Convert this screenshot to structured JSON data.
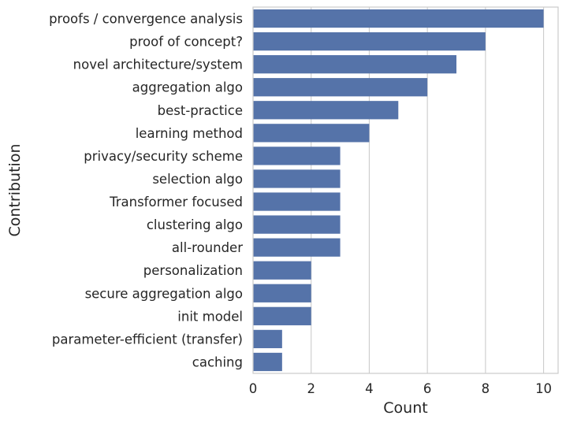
{
  "chart_data": {
    "type": "bar",
    "orientation": "horizontal",
    "categories": [
      "proofs / convergence analysis",
      "proof of concept?",
      "novel architecture/system",
      "aggregation algo",
      "best-practice",
      "learning method",
      "privacy/security scheme",
      "selection algo",
      "Transformer focused",
      "clustering algo",
      "all-rounder",
      "personalization",
      "secure aggregation algo",
      "init model",
      "parameter-efficient (transfer)",
      "caching"
    ],
    "values": [
      10,
      8,
      7,
      6,
      5,
      4,
      3,
      3,
      3,
      3,
      3,
      2,
      2,
      2,
      1,
      1
    ],
    "xlabel": "Count",
    "ylabel": "Contribution",
    "xlim": [
      0,
      10.5
    ],
    "xticks": [
      "0",
      "2",
      "4",
      "6",
      "8",
      "10"
    ],
    "grid": "vertical",
    "colors": {
      "bar": "#5573a9",
      "grid": "#cccccc",
      "text": "#262626"
    }
  }
}
